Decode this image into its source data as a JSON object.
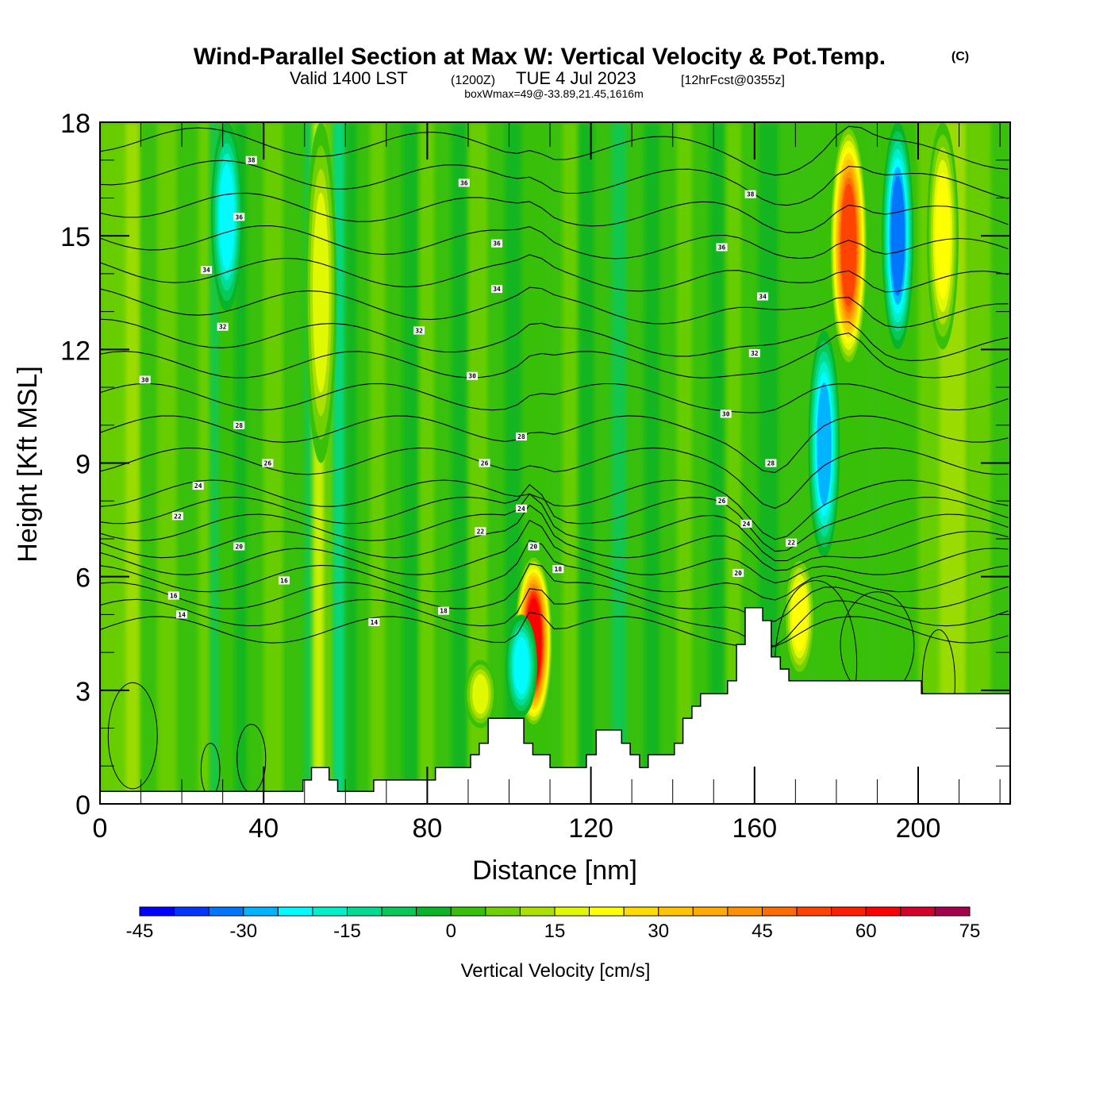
{
  "title": {
    "main": "Wind-Parallel Section at Max W: Vertical Velocity & Pot.Temp.",
    "copyright": "(C)",
    "valid_prefix": "Valid 1400 LST",
    "valid_z": "(1200Z)",
    "valid_date": "TUE 4 Jul 2023",
    "forecast": "[12hrFcst@0355z]",
    "boxwmax": "boxWmax=49@-33.89,21.45,1616m"
  },
  "chart_data": {
    "type": "heatmap",
    "title": "Wind-Parallel Section at Max W: Vertical Velocity & Pot.Temp.",
    "xlabel": "Distance [nm]",
    "ylabel": "Height [Kft MSL]",
    "xlim": [
      0,
      222.5
    ],
    "ylim": [
      0,
      18
    ],
    "x_ticks": [
      "0",
      "40",
      "80",
      "120",
      "160",
      "200"
    ],
    "x_tick_values": [
      0,
      40,
      80,
      120,
      160,
      200
    ],
    "x_minor_step": 10,
    "y_ticks": [
      "0",
      "3",
      "6",
      "9",
      "12",
      "15",
      "18"
    ],
    "y_tick_values": [
      0,
      3,
      6,
      9,
      12,
      15,
      18
    ],
    "y_minor_step": 1,
    "colorbar": {
      "title": "Vertical Velocity [cm/s]",
      "levels": [
        -45,
        -40,
        -35,
        -30,
        -25,
        -20,
        -15,
        -10,
        -5,
        0,
        5,
        10,
        15,
        20,
        25,
        30,
        35,
        40,
        45,
        50,
        55,
        60,
        65,
        70,
        75
      ],
      "tick_labels": [
        "-45",
        "-30",
        "-15",
        "0",
        "15",
        "30",
        "45",
        "60",
        "75"
      ],
      "tick_values": [
        -45,
        -30,
        -15,
        0,
        15,
        30,
        45,
        60,
        75
      ],
      "colors": [
        "#0000ff",
        "#0036ff",
        "#0076ff",
        "#00b4ff",
        "#00fcff",
        "#00f0cc",
        "#00dc92",
        "#08c858",
        "#08b428",
        "#38c008",
        "#70d000",
        "#ace000",
        "#e0f800",
        "#ffff00",
        "#ffdc00",
        "#ffc400",
        "#ffac00",
        "#ff9000",
        "#ff6c00",
        "#ff4400",
        "#ff2000",
        "#ff0000",
        "#d4002c",
        "#a4004c"
      ]
    },
    "velocity_features": [
      {
        "name": "updraft-core-105nm",
        "x": 106,
        "y_bottom": 2.0,
        "y_top": 6.6,
        "peak": 65
      },
      {
        "name": "updraft-178-186nm",
        "x": 183,
        "y_bottom": 11.5,
        "y_top": 18,
        "peak": 55
      },
      {
        "name": "updraft-170nm-low",
        "x": 171,
        "y_bottom": 3.3,
        "y_top": 6.6,
        "peak": 25
      },
      {
        "name": "updraft-93nm-low",
        "x": 93,
        "y_bottom": 2.0,
        "y_top": 3.8,
        "peak": 20
      },
      {
        "name": "updraft-54nm-column",
        "x": 54,
        "y_bottom": 9,
        "y_top": 18,
        "peak": 18
      },
      {
        "name": "updraft-207nm-upper",
        "x": 206,
        "y_bottom": 12,
        "y_top": 18,
        "peak": 25
      },
      {
        "name": "downdraft-31nm-upper",
        "x": 31,
        "y_bottom": 13,
        "y_top": 18,
        "peak": -25
      },
      {
        "name": "downdraft-173-178nm",
        "x": 177,
        "y_bottom": 6.5,
        "y_top": 12.5,
        "peak": -30
      },
      {
        "name": "downdraft-195nm-upper",
        "x": 195,
        "y_bottom": 12,
        "y_top": 18,
        "peak": -35
      },
      {
        "name": "downdraft-103nm-low",
        "x": 103,
        "y_bottom": 2.3,
        "y_top": 5,
        "peak": -25
      }
    ],
    "theta_contours": {
      "units": "C",
      "label_values": [
        "14",
        "16",
        "18",
        "20",
        "22",
        "24",
        "26",
        "28",
        "30",
        "32",
        "34",
        "36",
        "38"
      ],
      "labels": [
        {
          "text": "38",
          "x": 37,
          "y": 17.0
        },
        {
          "text": "36",
          "x": 89,
          "y": 16.4
        },
        {
          "text": "38",
          "x": 159,
          "y": 16.1
        },
        {
          "text": "36",
          "x": 34,
          "y": 15.5
        },
        {
          "text": "36",
          "x": 97,
          "y": 14.8
        },
        {
          "text": "36",
          "x": 152,
          "y": 14.7
        },
        {
          "text": "34",
          "x": 26,
          "y": 14.1
        },
        {
          "text": "34",
          "x": 97,
          "y": 13.6
        },
        {
          "text": "34",
          "x": 162,
          "y": 13.4
        },
        {
          "text": "32",
          "x": 30,
          "y": 12.6
        },
        {
          "text": "32",
          "x": 78,
          "y": 12.5
        },
        {
          "text": "32",
          "x": 160,
          "y": 11.9
        },
        {
          "text": "30",
          "x": 11,
          "y": 11.2
        },
        {
          "text": "30",
          "x": 91,
          "y": 11.3
        },
        {
          "text": "30",
          "x": 153,
          "y": 10.3
        },
        {
          "text": "28",
          "x": 34,
          "y": 10.0
        },
        {
          "text": "28",
          "x": 103,
          "y": 9.7
        },
        {
          "text": "28",
          "x": 164,
          "y": 9.0
        },
        {
          "text": "26",
          "x": 41,
          "y": 9.0
        },
        {
          "text": "26",
          "x": 94,
          "y": 9.0
        },
        {
          "text": "26",
          "x": 152,
          "y": 8.0
        },
        {
          "text": "24",
          "x": 24,
          "y": 8.4
        },
        {
          "text": "24",
          "x": 103,
          "y": 7.8
        },
        {
          "text": "24",
          "x": 158,
          "y": 7.4
        },
        {
          "text": "22",
          "x": 19,
          "y": 7.6
        },
        {
          "text": "22",
          "x": 93,
          "y": 7.2
        },
        {
          "text": "22",
          "x": 169,
          "y": 6.9
        },
        {
          "text": "20",
          "x": 34,
          "y": 6.8
        },
        {
          "text": "20",
          "x": 106,
          "y": 6.8
        },
        {
          "text": "20",
          "x": 156,
          "y": 6.1
        },
        {
          "text": "18",
          "x": 112,
          "y": 6.2
        },
        {
          "text": "18",
          "x": 84,
          "y": 5.1
        },
        {
          "text": "16",
          "x": 18,
          "y": 5.5
        },
        {
          "text": "16",
          "x": 45,
          "y": 5.9
        },
        {
          "text": "14",
          "x": 20,
          "y": 5.0
        },
        {
          "text": "14",
          "x": 67,
          "y": 4.8
        }
      ]
    },
    "terrain": {
      "description": "stepped terrain profile (height kft MSL vs distance nm)",
      "steps": [
        [
          0,
          0.33
        ],
        [
          49.6,
          0.63
        ],
        [
          51.7,
          0.96
        ],
        [
          56.0,
          0.63
        ],
        [
          58.1,
          0.33
        ],
        [
          66.9,
          0.63
        ],
        [
          82.0,
          0.96
        ],
        [
          90.6,
          1.3
        ],
        [
          92.7,
          1.6
        ],
        [
          94.9,
          2.26
        ],
        [
          103.6,
          1.6
        ],
        [
          105.8,
          1.3
        ],
        [
          110.0,
          0.96
        ],
        [
          118.9,
          1.3
        ],
        [
          121.3,
          1.95
        ],
        [
          127.5,
          1.6
        ],
        [
          129.6,
          1.3
        ],
        [
          131.9,
          0.96
        ],
        [
          134.0,
          1.3
        ],
        [
          140.4,
          1.6
        ],
        [
          142.5,
          2.26
        ],
        [
          144.7,
          2.58
        ],
        [
          146.8,
          2.91
        ],
        [
          153.4,
          3.25
        ],
        [
          155.6,
          4.21
        ],
        [
          157.7,
          5.18
        ],
        [
          162.0,
          4.84
        ],
        [
          164.1,
          3.88
        ],
        [
          166.3,
          3.56
        ],
        [
          168.4,
          3.25
        ],
        [
          200.8,
          2.91
        ],
        [
          222.5,
          2.91
        ]
      ]
    }
  }
}
